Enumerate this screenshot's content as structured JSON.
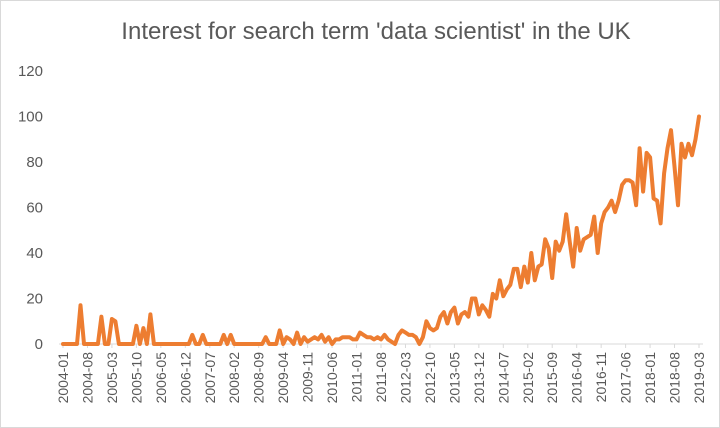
{
  "chart_data": {
    "type": "line",
    "title": "Interest for search term 'data scientist' in the UK",
    "xlabel": "",
    "ylabel": "",
    "ylim": [
      0,
      120
    ],
    "yticks": [
      0,
      20,
      40,
      60,
      80,
      100,
      120
    ],
    "grid": false,
    "legend": "none",
    "x_start": "2004-01",
    "x_end": "2019-03",
    "x_step": "monthly",
    "xtick_labels": [
      "2004-01",
      "2004-08",
      "2005-03",
      "2005-10",
      "2006-05",
      "2006-12",
      "2007-07",
      "2008-02",
      "2008-09",
      "2009-04",
      "2009-11",
      "2010-06",
      "2011-01",
      "2011-08",
      "2012-03",
      "2012-10",
      "2013-05",
      "2013-12",
      "2014-07",
      "2015-02",
      "2015-09",
      "2016-04",
      "2016-11",
      "2017-06",
      "2018-01",
      "2018-08",
      "2019-03"
    ],
    "series": [
      {
        "color": "#ED7D31",
        "values": [
          0,
          0,
          0,
          0,
          0,
          17,
          0,
          0,
          0,
          0,
          0,
          12,
          0,
          0,
          11,
          10,
          0,
          0,
          0,
          0,
          0,
          8,
          0,
          7,
          0,
          13,
          0,
          0,
          0,
          0,
          0,
          0,
          0,
          0,
          0,
          0,
          0,
          4,
          0,
          0,
          4,
          0,
          0,
          0,
          0,
          0,
          4,
          0,
          4,
          0,
          0,
          0,
          0,
          0,
          0,
          0,
          0,
          0,
          3,
          0,
          0,
          0,
          6,
          0,
          3,
          2,
          0,
          5,
          0,
          3,
          1,
          2,
          3,
          2,
          4,
          1,
          3,
          0,
          2,
          2,
          3,
          3,
          3,
          2,
          2,
          5,
          4,
          3,
          3,
          2,
          3,
          2,
          4,
          2,
          1,
          0,
          4,
          6,
          5,
          4,
          4,
          3,
          0,
          3,
          10,
          7,
          6,
          7,
          12,
          14,
          9,
          14,
          16,
          9,
          13,
          14,
          12,
          20,
          20,
          13,
          17,
          15,
          12,
          22,
          20,
          28,
          21,
          24,
          26,
          33,
          33,
          25,
          34,
          27,
          40,
          28,
          34,
          35,
          46,
          42,
          29,
          45,
          41,
          45,
          57,
          45,
          34,
          51,
          41,
          46,
          47,
          48,
          56,
          40,
          53,
          58,
          60,
          63,
          58,
          63,
          70,
          72,
          72,
          71,
          61,
          86,
          67,
          84,
          82,
          64,
          63,
          53,
          75,
          86,
          94,
          78,
          61,
          88,
          82,
          88,
          83,
          90,
          100
        ]
      }
    ]
  }
}
